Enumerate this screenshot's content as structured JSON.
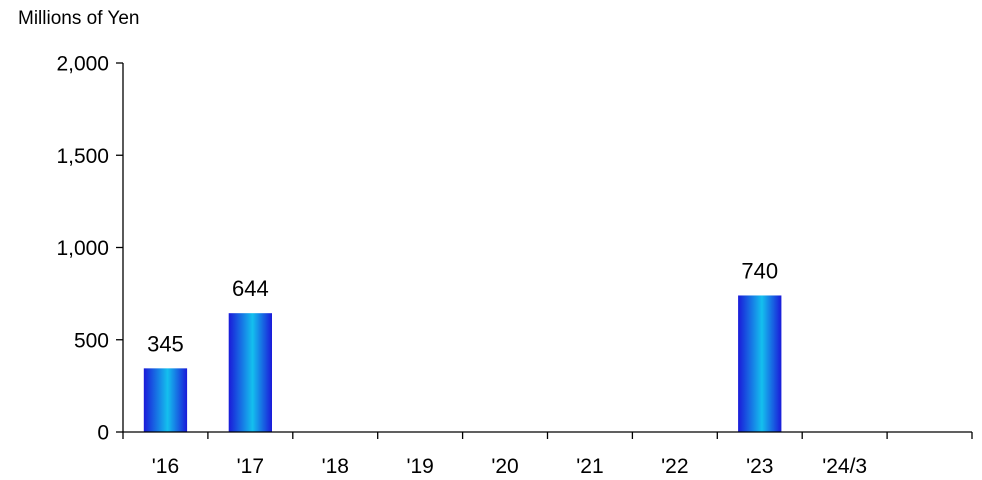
{
  "chart_data": {
    "type": "bar",
    "unit_label": "Millions of Yen",
    "categories": [
      "'16",
      "'17",
      "'18",
      "'19",
      "'20",
      "'21",
      "'22",
      "'23",
      "'24/3"
    ],
    "values": [
      345,
      644,
      null,
      null,
      null,
      null,
      null,
      740,
      null
    ],
    "value_labels": [
      "345",
      "644",
      "",
      "",
      "",
      "",
      "",
      "740",
      ""
    ],
    "ylim": [
      0,
      2000
    ],
    "y_ticks": [
      0,
      500,
      1000,
      1500,
      2000
    ],
    "y_tick_labels": [
      "0",
      "500",
      "1,000",
      "1,500",
      "2,000"
    ],
    "grid": false,
    "legend": "none",
    "colors": {
      "bar_edge": "#1a1ad9",
      "bar_center": "#14c0ee",
      "axis": "#000000",
      "text": "#000000"
    }
  }
}
